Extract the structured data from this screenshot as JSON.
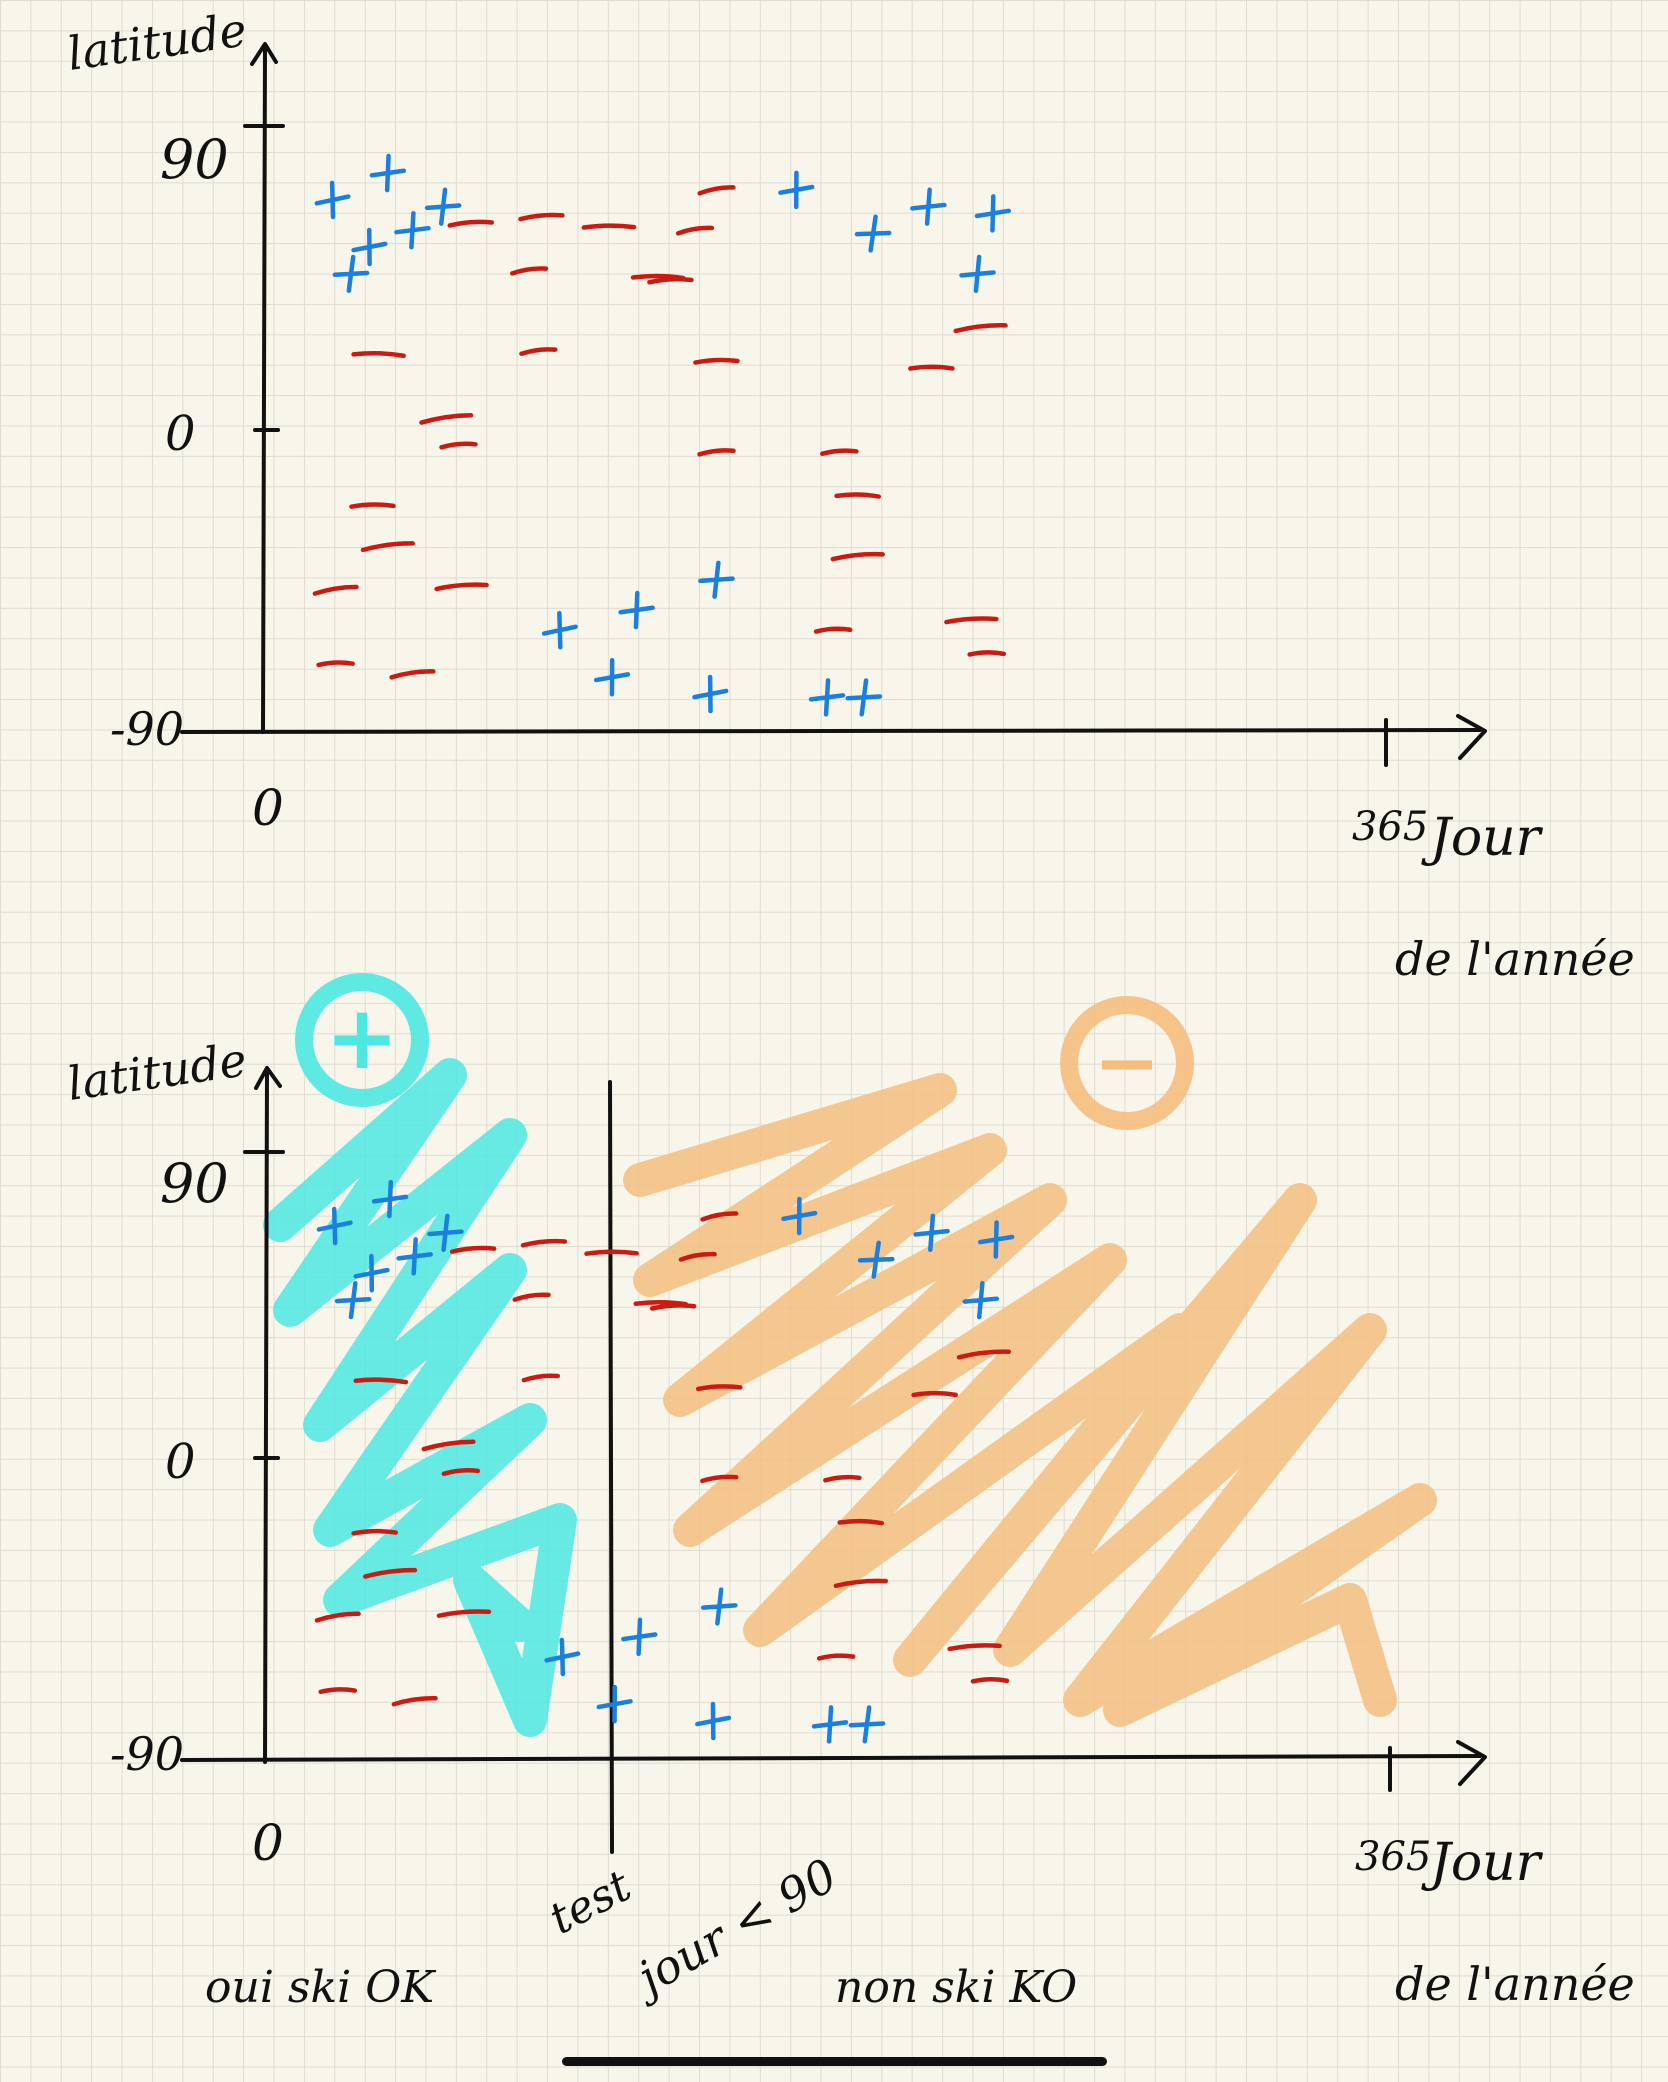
{
  "colors": {
    "plus": "#1a7fe0",
    "minus": "#cc1a10",
    "ink": "#111111",
    "cyan": "#4ee8e2",
    "orange": "#f5be80"
  },
  "top_chart": {
    "y_axis_label": "latitude",
    "y_ticks": [
      "90",
      "0",
      "-90"
    ],
    "x_ticks": [
      "0",
      "365"
    ],
    "x_axis_label_line1": "Jour",
    "x_axis_label_line2": "de l'année"
  },
  "bottom_chart": {
    "y_axis_label": "latitude",
    "y_ticks": [
      "90",
      "0",
      "-90"
    ],
    "x_ticks": [
      "0",
      "365"
    ],
    "x_axis_label_line1": "Jour",
    "x_axis_label_line2": "de l'année",
    "region_left_symbol": "+",
    "region_right_symbol": "−",
    "test_label": "test",
    "test_condition": "jour < 90",
    "left_label": "oui ski OK",
    "right_label": "non ski KO"
  },
  "chart_data": {
    "type": "scatter",
    "series": [
      {
        "name": "+",
        "points": [
          [
            22,
            68
          ],
          [
            40,
            76
          ],
          [
            58,
            66
          ],
          [
            34,
            54
          ],
          [
            48,
            59
          ],
          [
            28,
            46
          ],
          [
            173,
            71
          ],
          [
            216,
            66
          ],
          [
            198,
            58
          ],
          [
            237,
            64
          ],
          [
            232,
            46
          ],
          [
            96,
            -60
          ],
          [
            121,
            -54
          ],
          [
            147,
            -45
          ],
          [
            145,
            -79
          ],
          [
            183,
            -80
          ],
          [
            195,
            -80
          ],
          [
            113,
            -74
          ]
        ]
      },
      {
        "name": "−",
        "points": [
          [
            147,
            71
          ],
          [
            90,
            63
          ],
          [
            112,
            60
          ],
          [
            140,
            59
          ],
          [
            67,
            61
          ],
          [
            128,
            45
          ],
          [
            86,
            47
          ],
          [
            132,
            44
          ],
          [
            37,
            22
          ],
          [
            89,
            23
          ],
          [
            147,
            20
          ],
          [
            59,
            3
          ],
          [
            147,
            -7
          ],
          [
            35,
            -23
          ],
          [
            40,
            -35
          ],
          [
            63,
            -5
          ],
          [
            217,
            18
          ],
          [
            233,
            30
          ],
          [
            187,
            -7
          ],
          [
            193,
            -20
          ],
          [
            193,
            -38
          ],
          [
            185,
            -60
          ],
          [
            23,
            -48
          ],
          [
            64,
            -47
          ],
          [
            23,
            -70
          ],
          [
            48,
            -73
          ],
          [
            230,
            -57
          ],
          [
            235,
            -67
          ]
        ]
      }
    ],
    "bottom_chart_split_x": 90
  }
}
